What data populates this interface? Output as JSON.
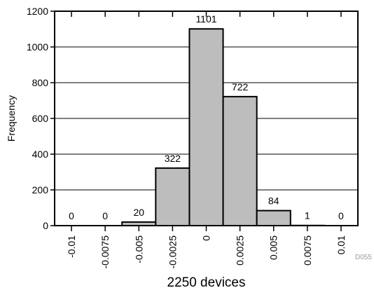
{
  "chart_data": {
    "type": "bar",
    "categories": [
      "-0.01",
      "-0.0075",
      "-0.005",
      "-0.0025",
      "0",
      "0.0025",
      "0.005",
      "0.0075",
      "0.01"
    ],
    "values": [
      0,
      0,
      20,
      322,
      1101,
      722,
      84,
      1,
      0
    ],
    "data_labels": [
      "0",
      "0",
      "20",
      "322",
      "1101",
      "722",
      "84",
      "1",
      "0"
    ],
    "title": "",
    "xlabel": "2250 devices",
    "ylabel": "Frequency",
    "ylim": [
      0,
      1200
    ],
    "yticks": [
      0,
      200,
      400,
      600,
      800,
      1000,
      1200
    ],
    "ytick_labels": [
      "0",
      "200",
      "400",
      "600",
      "800",
      "1000",
      "1200"
    ],
    "grid": true,
    "bar_color": "#bdbdbd",
    "bar_edge_color": "#000000"
  },
  "footnote": "D055"
}
